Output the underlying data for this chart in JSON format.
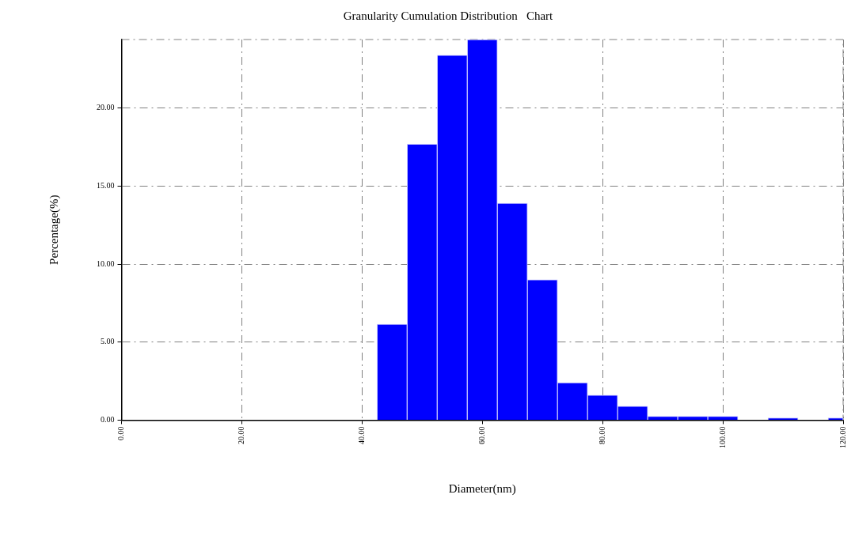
{
  "chart_data": {
    "type": "histogram",
    "title": "Granularity Cumulation Distribution   Chart",
    "xlabel": "Diameter(nm)",
    "ylabel": "Percentage(%)",
    "bins": [
      42.5,
      47.5,
      52.5,
      57.5,
      62.5,
      67.5,
      72.5,
      77.5,
      82.5,
      87.5,
      92.5,
      97.5,
      102.5,
      107.5,
      112.5,
      117.5,
      120
    ],
    "values": [
      6.15,
      17.7,
      23.4,
      24.4,
      13.9,
      9.0,
      2.4,
      1.6,
      0.9,
      0.25,
      0.25,
      0.25,
      0,
      0.15,
      0,
      0.15
    ],
    "color": "#0000ff",
    "xlim": [
      0,
      120
    ],
    "xticks": [
      {
        "value": 0,
        "label": "0.00"
      },
      {
        "value": 20,
        "label": "20.00"
      },
      {
        "value": 40,
        "label": "40.00"
      },
      {
        "value": 60,
        "label": "60.00"
      },
      {
        "value": 80,
        "label": "80.00"
      },
      {
        "value": 100,
        "label": "100.00"
      },
      {
        "value": 120,
        "label": "120.00"
      }
    ],
    "ylim": [
      0,
      24.4
    ],
    "yticks": [
      {
        "value": 0,
        "label": "0.00"
      },
      {
        "value": 5,
        "label": "5.00"
      },
      {
        "value": 10,
        "label": "10.00"
      },
      {
        "value": 15,
        "label": "15.00"
      },
      {
        "value": 20,
        "label": "20.00"
      }
    ],
    "grid": true
  }
}
